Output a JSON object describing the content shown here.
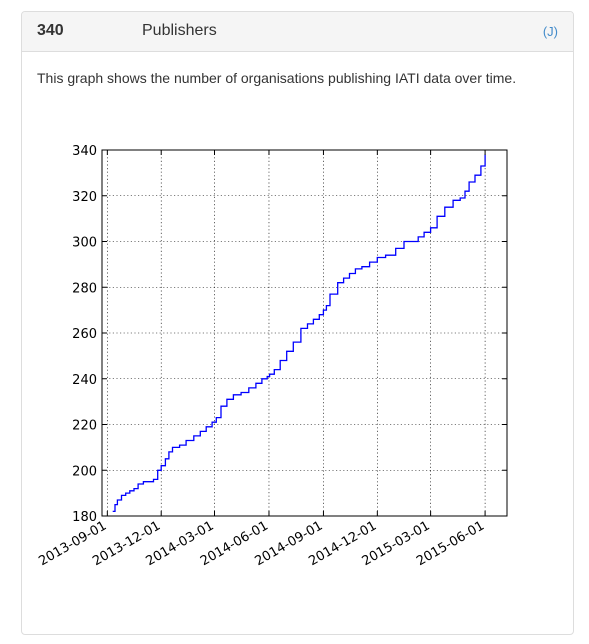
{
  "panel": {
    "count": "340",
    "title": "Publishers",
    "link_label": "(J)",
    "description": "This graph shows the number of organisations publishing IATI data over time."
  },
  "chart_data": {
    "type": "line",
    "title": "",
    "xlabel": "",
    "ylabel": "",
    "x_ticks": [
      "2013-09-01",
      "2013-12-01",
      "2014-03-01",
      "2014-06-01",
      "2014-09-01",
      "2014-12-01",
      "2015-03-01",
      "2015-06-01"
    ],
    "y_ticks": [
      180,
      200,
      220,
      240,
      260,
      280,
      300,
      320,
      340
    ],
    "xlim": [
      "2013-08-23",
      "2015-07-08"
    ],
    "ylim": [
      180,
      340
    ],
    "grid": true,
    "line_color": "#0000ff",
    "series": [
      {
        "x": [
          "2013-09-10",
          "2013-09-14",
          "2013-09-18",
          "2013-09-25",
          "2013-10-02",
          "2013-10-09",
          "2013-10-16",
          "2013-10-23",
          "2013-11-01",
          "2013-11-10",
          "2013-11-18",
          "2013-11-25",
          "2013-12-01",
          "2013-12-08",
          "2013-12-14",
          "2013-12-20",
          "2014-01-01",
          "2014-01-12",
          "2014-01-25",
          "2014-02-05",
          "2014-02-15",
          "2014-02-25",
          "2014-03-04",
          "2014-03-12",
          "2014-03-22",
          "2014-04-02",
          "2014-04-15",
          "2014-04-28",
          "2014-05-10",
          "2014-05-20",
          "2014-05-29",
          "2014-06-02",
          "2014-06-10",
          "2014-06-20",
          "2014-07-01",
          "2014-07-12",
          "2014-07-25",
          "2014-08-05",
          "2014-08-15",
          "2014-08-25",
          "2014-09-01",
          "2014-09-06",
          "2014-09-12",
          "2014-09-25",
          "2014-10-05",
          "2014-10-15",
          "2014-10-25",
          "2014-11-05",
          "2014-11-18",
          "2014-12-01",
          "2014-12-15",
          "2015-01-01",
          "2015-01-15",
          "2015-01-28",
          "2015-02-08",
          "2015-02-18",
          "2015-03-01",
          "2015-03-12",
          "2015-03-25",
          "2015-04-08",
          "2015-04-20",
          "2015-04-28",
          "2015-05-05",
          "2015-05-15",
          "2015-05-25",
          "2015-06-01"
        ],
        "y": [
          182,
          185,
          187,
          189,
          190,
          191,
          192,
          194,
          195,
          195,
          196,
          200,
          202,
          205,
          208,
          210,
          211,
          213,
          215,
          217,
          219,
          221,
          223,
          228,
          231,
          233,
          234,
          236,
          238,
          240,
          241,
          242,
          244,
          248,
          252,
          256,
          262,
          264,
          266,
          268,
          270,
          272,
          277,
          282,
          284,
          286,
          288,
          289,
          291,
          293,
          294,
          297,
          300,
          300,
          302,
          304,
          306,
          311,
          315,
          318,
          319,
          322,
          326,
          329,
          333,
          338
        ]
      }
    ]
  }
}
